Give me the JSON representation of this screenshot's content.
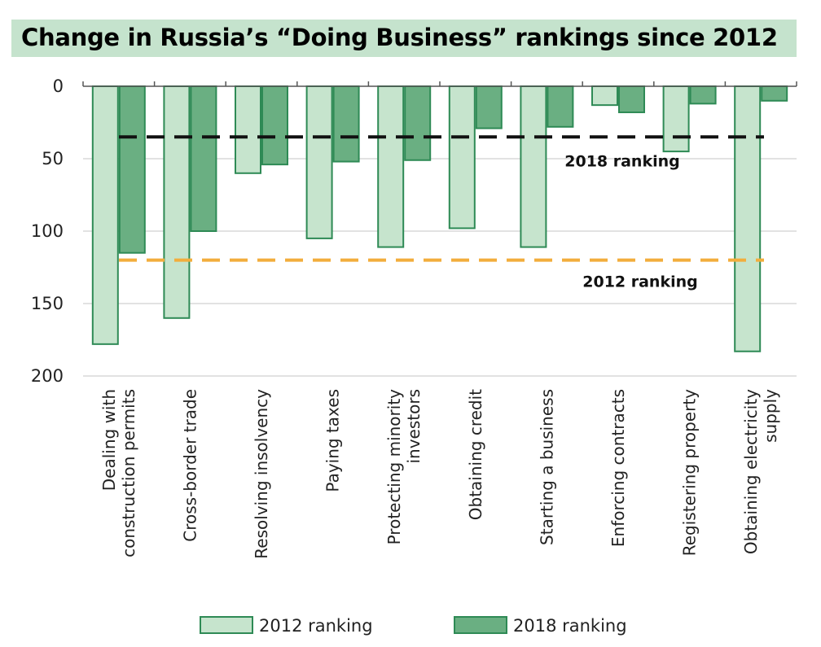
{
  "title": "Change in Russia’s “Doing Business” rankings since 2012",
  "colors": {
    "title_bg": "#c5e3cd",
    "series_2012_fill": "#c6e4cd",
    "series_2018_fill": "#6aaf82",
    "bar_stroke": "#2e8a55",
    "line_2018": "#111111",
    "line_2012": "#f2ad3c",
    "grid": "#d9d9d9"
  },
  "chart_data": {
    "type": "bar",
    "orientation": "vertical",
    "y_inverted": true,
    "ylim": [
      0,
      200
    ],
    "yticks": [
      0,
      50,
      100,
      150,
      200
    ],
    "grid": true,
    "legend_position": "bottom",
    "categories": [
      [
        "Dealing with",
        "construction permits"
      ],
      [
        "Cross-border trade"
      ],
      [
        "Resolving insolvency"
      ],
      [
        "Paying taxes"
      ],
      [
        "Protecting minority",
        "investors"
      ],
      [
        "Obtaining credit"
      ],
      [
        "Starting a business"
      ],
      [
        "Enforcing contracts"
      ],
      [
        "Registering property"
      ],
      [
        "Obtaining electricity",
        "supply"
      ]
    ],
    "series": [
      {
        "name": "2012 ranking",
        "values": [
          178,
          160,
          60,
          105,
          111,
          98,
          111,
          13,
          45,
          183
        ]
      },
      {
        "name": "2018 ranking",
        "values": [
          115,
          100,
          54,
          52,
          51,
          29,
          28,
          18,
          12,
          10
        ]
      }
    ],
    "reference_lines": [
      {
        "label": "2018 ranking",
        "value": 35
      },
      {
        "label": "2012 ranking",
        "value": 120
      }
    ]
  }
}
